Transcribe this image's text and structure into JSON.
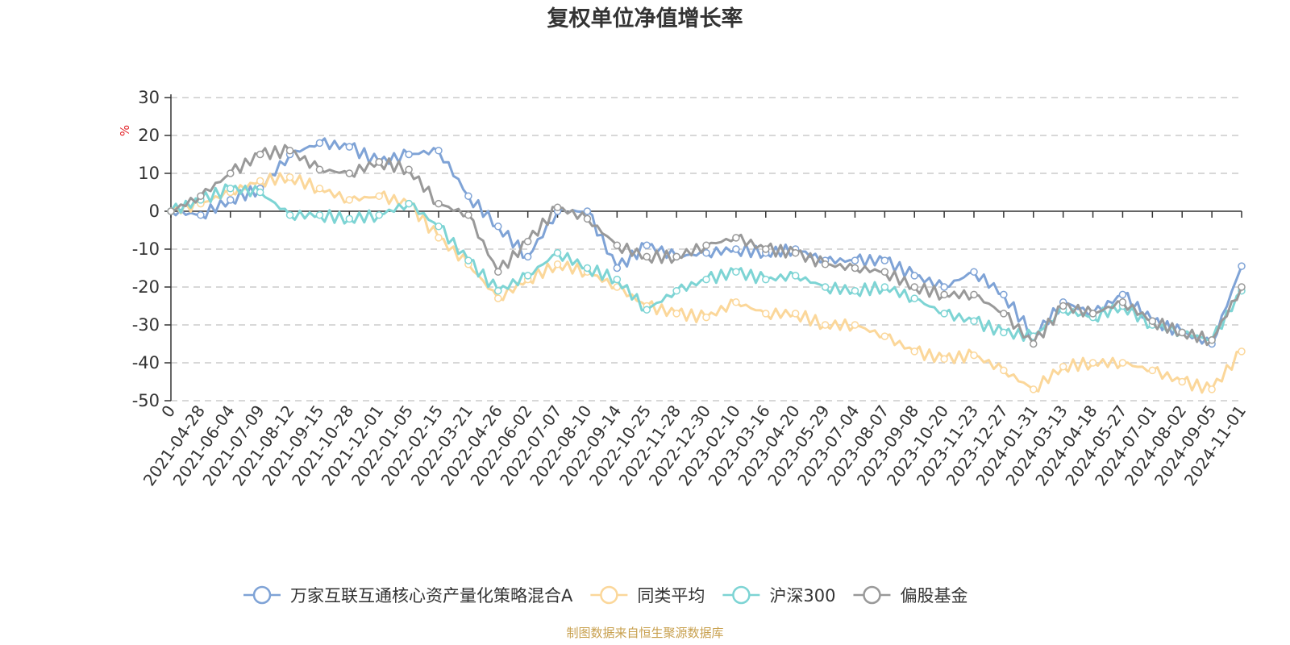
{
  "chart_data": {
    "type": "line",
    "title": "复权单位净值增长率",
    "ylabel": "%",
    "ylim": [
      -50,
      30
    ],
    "yticks": [
      "30",
      "20",
      "10",
      "0",
      "-10",
      "-20",
      "-30",
      "-40",
      "-50"
    ],
    "categories": [
      "0",
      "2021-04-28",
      "2021-06-04",
      "2021-07-09",
      "2021-08-12",
      "2021-09-15",
      "2021-10-28",
      "2021-12-01",
      "2022-01-05",
      "2022-02-15",
      "2022-03-21",
      "2022-04-26",
      "2022-06-02",
      "2022-07-07",
      "2022-08-10",
      "2022-09-14",
      "2022-10-25",
      "2022-11-28",
      "2022-12-30",
      "2023-02-10",
      "2023-03-16",
      "2023-04-20",
      "2023-05-29",
      "2023-07-04",
      "2023-08-07",
      "2023-09-08",
      "2023-10-20",
      "2023-11-23",
      "2023-12-27",
      "2024-01-31",
      "2024-03-13",
      "2024-04-18",
      "2024-05-27",
      "2024-07-01",
      "2024-08-02",
      "2024-09-05",
      "2024-11-01"
    ],
    "series": [
      {
        "name": "万家互联互通核心资产量化策略混合A",
        "color": "#7fa3d6",
        "values": [
          0,
          -1,
          3,
          6,
          15,
          18,
          17,
          13,
          15,
          16,
          4,
          -4,
          -12,
          0,
          0,
          -15,
          -9,
          -12,
          -11,
          -10,
          -11,
          -10,
          -13,
          -13,
          -13,
          -17,
          -20,
          -16,
          -22,
          -33,
          -24,
          -27,
          -22,
          -29,
          -32,
          -35,
          -14.5
        ]
      },
      {
        "name": "同类平均",
        "color": "#fbd79a",
        "values": [
          0,
          2,
          5,
          8,
          9,
          6,
          3,
          4,
          2,
          -7,
          -14,
          -23,
          -18,
          -14,
          -16,
          -20,
          -25,
          -27,
          -28,
          -24,
          -27,
          -27,
          -30,
          -30,
          -33,
          -37,
          -39,
          -38,
          -42,
          -47,
          -41,
          -40,
          -40,
          -42,
          -45,
          -47,
          -37
        ]
      },
      {
        "name": "沪深300",
        "color": "#7dd4d4",
        "values": [
          0,
          3,
          6,
          5,
          -1,
          -1,
          -2,
          -1,
          2,
          -4,
          -13,
          -21,
          -17,
          -11,
          -15,
          -18,
          -26,
          -21,
          -18,
          -16,
          -18,
          -17,
          -20,
          -21,
          -20,
          -23,
          -27,
          -29,
          -32,
          -33,
          -26,
          -28,
          -25,
          -30,
          -32,
          -34,
          -21
        ]
      },
      {
        "name": "偏股基金",
        "color": "#999999",
        "values": [
          0,
          4,
          10,
          15,
          16,
          11,
          10,
          13,
          11,
          2,
          -1,
          -16,
          -8,
          1,
          -2,
          -9,
          -12,
          -12,
          -9,
          -7,
          -10,
          -11,
          -14,
          -15,
          -16,
          -20,
          -22,
          -22,
          -27,
          -35,
          -25,
          -27,
          -24,
          -29,
          -32,
          -34,
          -20
        ]
      }
    ],
    "source": "制图数据来自恒生聚源数据库"
  }
}
